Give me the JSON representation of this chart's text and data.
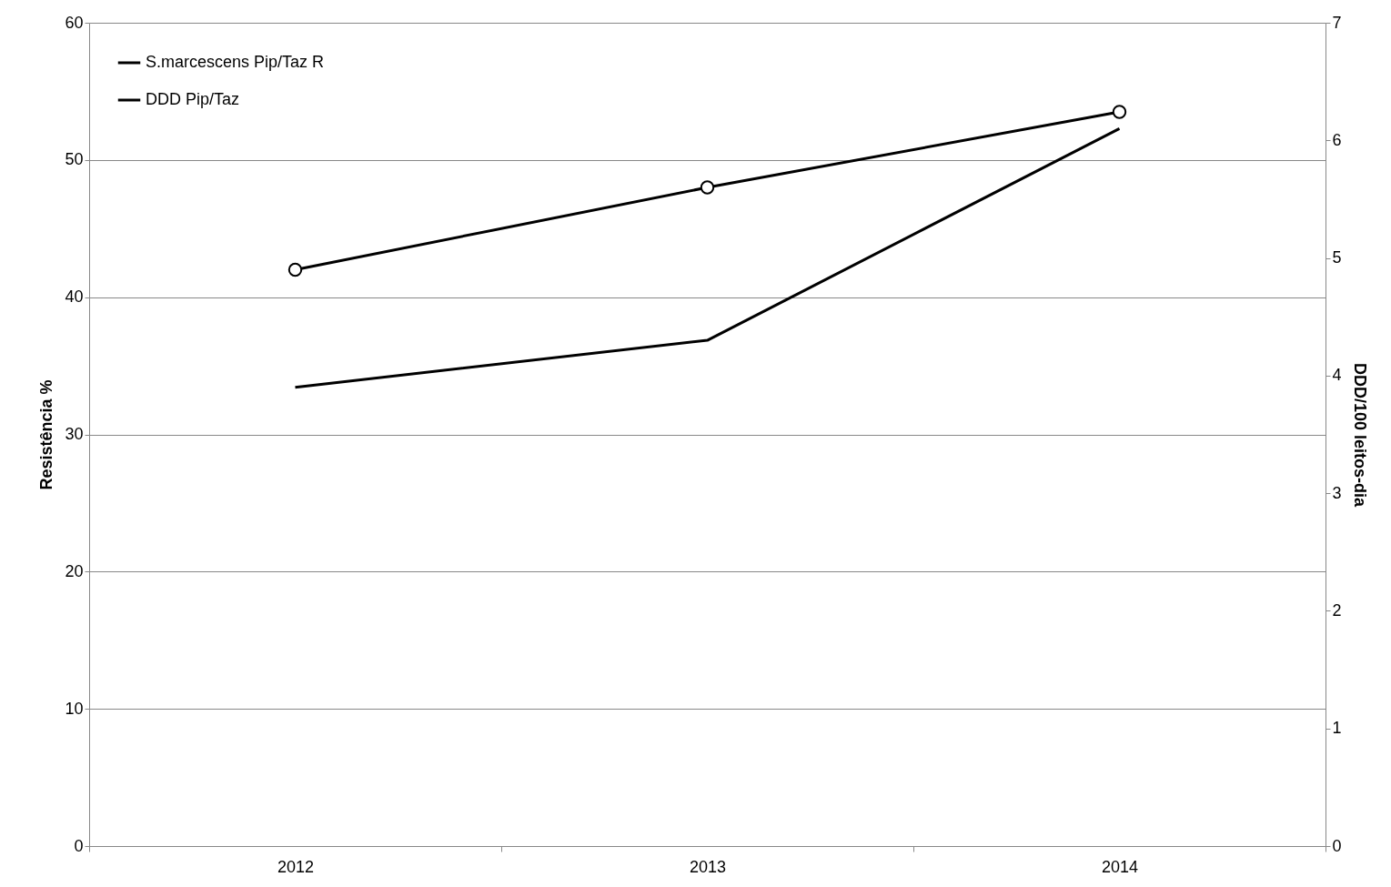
{
  "chart_data": {
    "type": "line",
    "ylabel": "Resistência %",
    "y2label": "DDD/100 leitos-dia",
    "categories": [
      "2012",
      "2013",
      "2014"
    ],
    "series": [
      {
        "name": "S.marcescens Pip/Taz R",
        "color": "#000000",
        "values": [
          42,
          48,
          53.5
        ],
        "marker": "circle"
      },
      {
        "name": "DDD Pip/Taz",
        "color": "#000000",
        "values": [
          3.9,
          4.3,
          6.1
        ],
        "axis": "y2",
        "marker": "none"
      }
    ],
    "ylim": [
      0,
      60
    ],
    "yticks": [
      0,
      10,
      20,
      30,
      40,
      50,
      60
    ],
    "y2lim": [
      0,
      7
    ],
    "y2ticks": [
      0,
      1,
      2,
      3,
      4,
      5,
      6,
      7
    ],
    "grid": "y",
    "legend": "top left",
    "line_style": "solid"
  }
}
